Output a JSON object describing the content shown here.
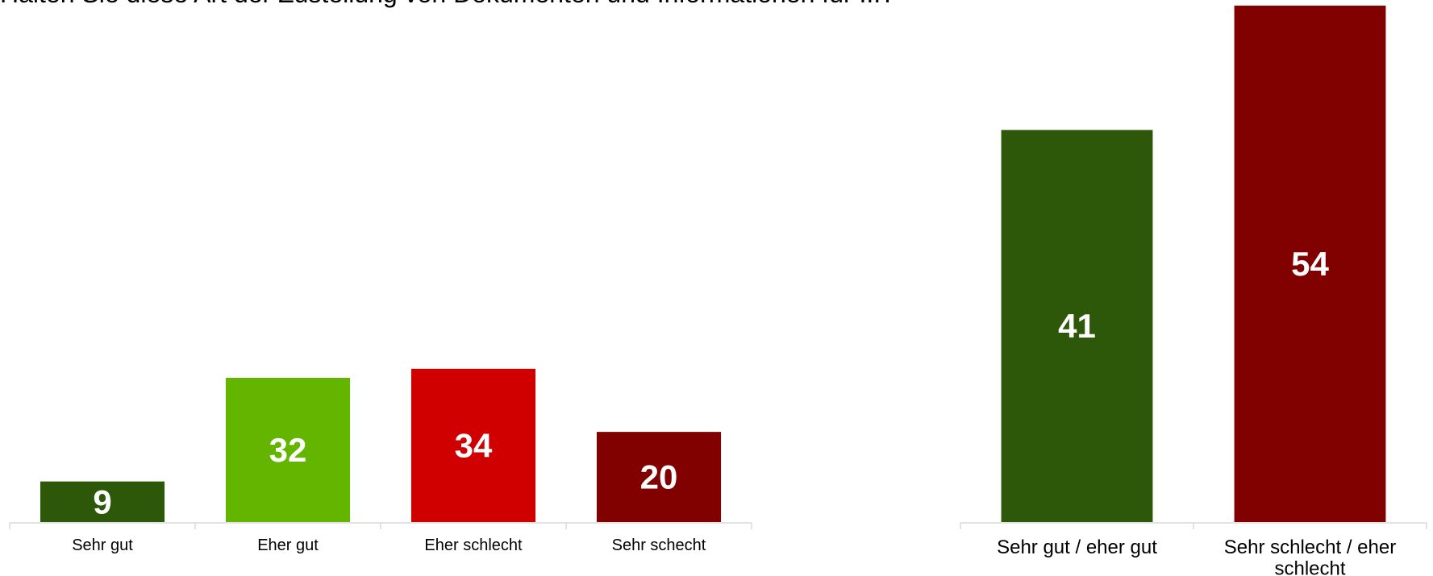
{
  "title": "Halten Sie diese Art der Zustellung von Dokumenten und Informationen für ...?",
  "chart_data": [
    {
      "type": "bar",
      "categories": [
        "Sehr gut",
        "Eher gut",
        "Eher schlecht",
        "Sehr schecht"
      ],
      "values": [
        9,
        32,
        34,
        20
      ],
      "colors": [
        "#2d5709",
        "#64b500",
        "#d00000",
        "#810000"
      ],
      "value_label_color": "#ffffff",
      "ylim": [
        0,
        64
      ]
    },
    {
      "type": "bar",
      "categories": [
        "Sehr gut / eher gut",
        "Sehr schlecht / eher schlecht"
      ],
      "values": [
        41,
        54
      ],
      "colors": [
        "#2d5709",
        "#810000"
      ],
      "value_label_color": "#ffffff",
      "ylim": [
        0,
        54
      ]
    }
  ]
}
